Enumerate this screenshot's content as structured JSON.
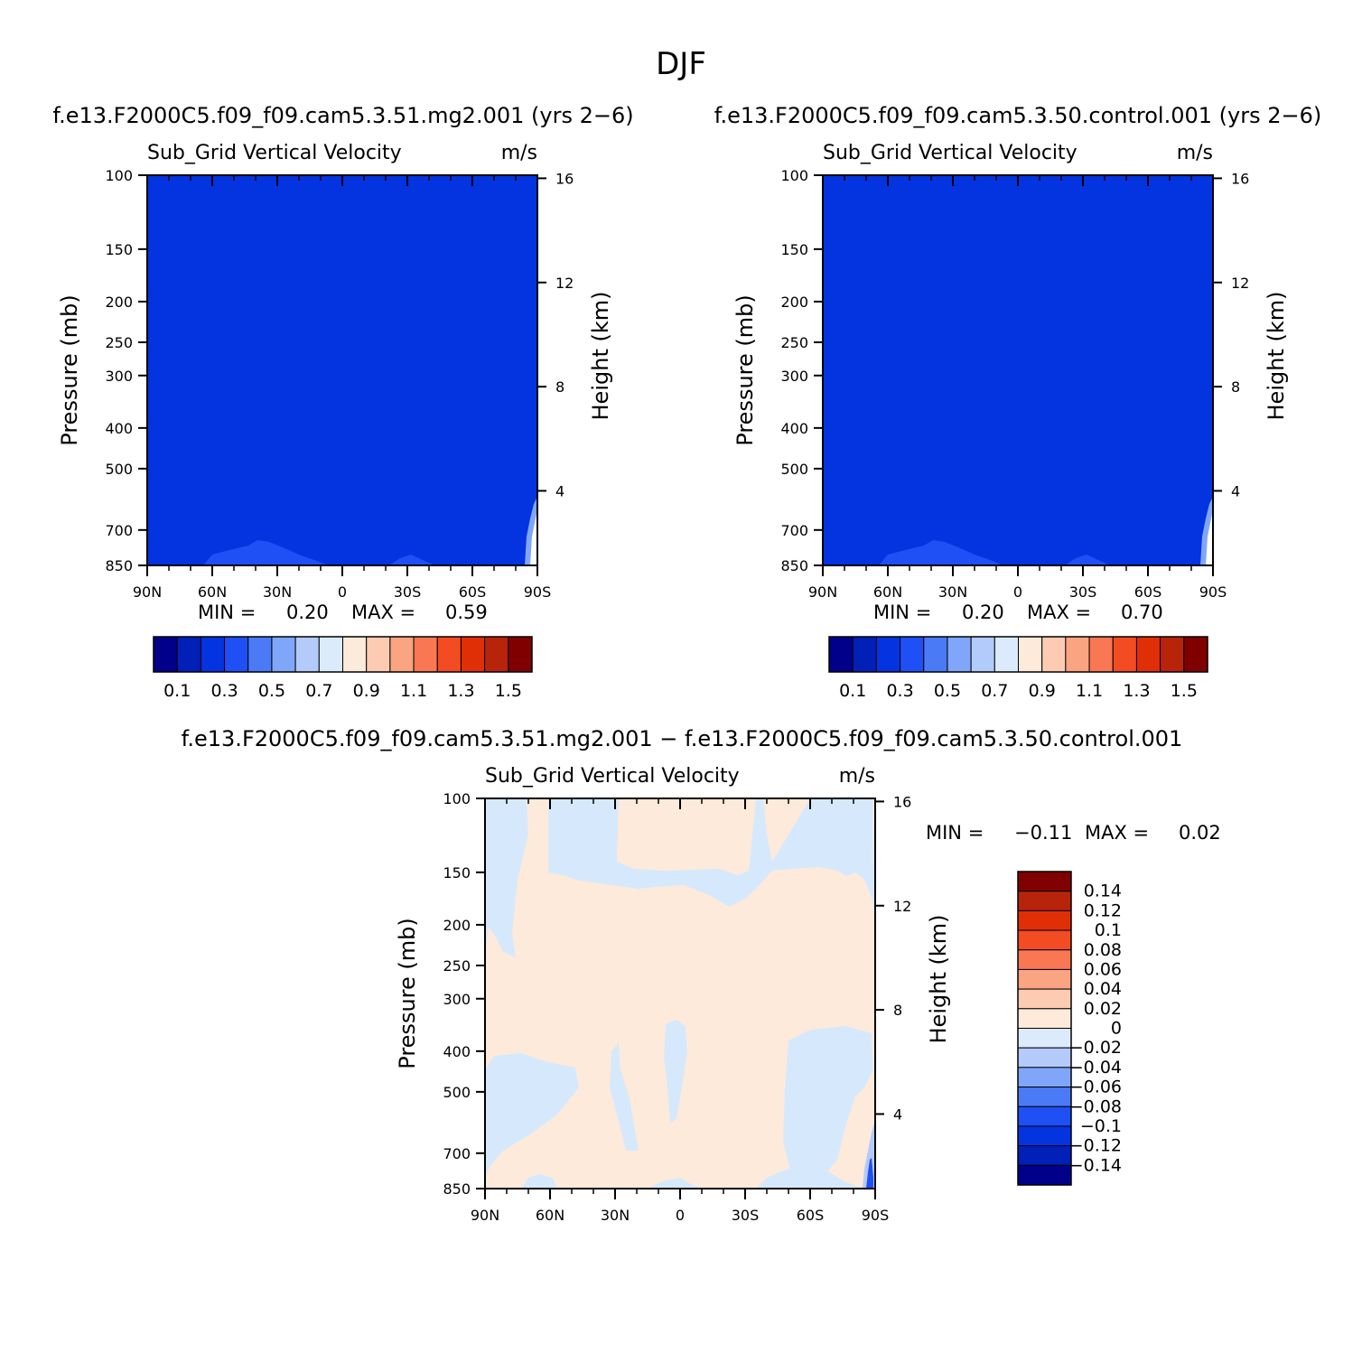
{
  "figure": {
    "title": "DJF"
  },
  "units": "m/s",
  "field_name": "Sub_Grid Vertical Velocity",
  "axes": {
    "pressure_label": "Pressure (mb)",
    "height_label": "Height (km)",
    "pressure_ticks": [
      100,
      150,
      200,
      250,
      300,
      400,
      500,
      700,
      850
    ],
    "height_ticks": [
      16,
      12,
      8,
      4
    ],
    "lat_ticks": [
      "90N",
      "60N",
      "30N",
      "0",
      "30S",
      "60S",
      "90S"
    ]
  },
  "colors": {
    "base_fill": "#0433E0",
    "diff_warm": "#FEEADA",
    "diff_cool": "#D6E9FC",
    "seq_colorbar": [
      "#00008A",
      "#0020B8",
      "#0433E0",
      "#1E50F5",
      "#4A7AF6",
      "#7FA6F8",
      "#B3CBFA",
      "#DCEBFB",
      "#FEEADA",
      "#FDCBB1",
      "#FBA482",
      "#F97752",
      "#F34B22",
      "#E02F06",
      "#B8240A",
      "#800000"
    ],
    "diff_colorbar": [
      "#00008A",
      "#0020B8",
      "#0433E0",
      "#1E50F5",
      "#4A7AF6",
      "#7FA6F8",
      "#B3CBFA",
      "#DCEBFB",
      "#FEEADA",
      "#FDCBB1",
      "#FBA482",
      "#F97752",
      "#F34B22",
      "#E02F06",
      "#B8240A",
      "#800000"
    ]
  },
  "panels": [
    {
      "case": "f.e13.F2000C5.f09_f09.cam5.3.51.mg2.001 (yrs 2-6)",
      "min_label": "MIN =",
      "min": "0.20",
      "max_label": "MAX =",
      "max": "0.59"
    },
    {
      "case": "f.e13.F2000C5.f09_f09.cam5.3.50.control.001 (yrs 2-6)",
      "min_label": "MIN =",
      "min": "0.20",
      "max_label": "MAX =",
      "max": "0.70"
    },
    {
      "case": "f.e13.F2000C5.f09_f09.cam5.3.51.mg2.001 - f.e13.F2000C5.f09_f09.cam5.3.50.control.001",
      "min_label": "MIN =",
      "min": "-0.11",
      "max_label": "MAX =",
      "max": "0.02"
    }
  ],
  "chart_data": [
    {
      "type": "heatmap",
      "title": "f.e13.F2000C5.f09_f09.cam5.3.51.mg2.001 (yrs 2-6)",
      "subtitle": "Sub_Grid Vertical Velocity",
      "units": "m/s",
      "xlabel": "",
      "ylabel": "Pressure (mb)",
      "y2label": "Height (km)",
      "x_range": [
        90,
        -90
      ],
      "y_range": [
        850,
        100
      ],
      "y_scale": "log",
      "value_min": 0.2,
      "value_max": 0.59,
      "contour_levels": [
        0.1,
        0.2,
        0.3,
        0.4,
        0.5,
        0.6,
        0.7,
        0.8,
        0.9,
        1.0,
        1.1,
        1.2,
        1.3,
        1.4,
        1.5
      ],
      "colorbar_labels": [
        "0.1",
        "0.3",
        "0.5",
        "0.7",
        "0.9",
        "1.1",
        "1.3",
        "1.5"
      ]
    },
    {
      "type": "heatmap",
      "title": "f.e13.F2000C5.f09_f09.cam5.3.50.control.001 (yrs 2-6)",
      "subtitle": "Sub_Grid Vertical Velocity",
      "units": "m/s",
      "xlabel": "",
      "ylabel": "Pressure (mb)",
      "y2label": "Height (km)",
      "x_range": [
        90,
        -90
      ],
      "y_range": [
        850,
        100
      ],
      "y_scale": "log",
      "value_min": 0.2,
      "value_max": 0.7,
      "contour_levels": [
        0.1,
        0.2,
        0.3,
        0.4,
        0.5,
        0.6,
        0.7,
        0.8,
        0.9,
        1.0,
        1.1,
        1.2,
        1.3,
        1.4,
        1.5
      ],
      "colorbar_labels": [
        "0.1",
        "0.3",
        "0.5",
        "0.7",
        "0.9",
        "1.1",
        "1.3",
        "1.5"
      ]
    },
    {
      "type": "heatmap",
      "title": "f.e13.F2000C5.f09_f09.cam5.3.51.mg2.001 - f.e13.F2000C5.f09_f09.cam5.3.50.control.001",
      "subtitle": "Sub_Grid Vertical Velocity",
      "units": "m/s",
      "xlabel": "",
      "ylabel": "Pressure (mb)",
      "y2label": "Height (km)",
      "x_range": [
        90,
        -90
      ],
      "y_range": [
        850,
        100
      ],
      "y_scale": "log",
      "value_min": -0.11,
      "value_max": 0.02,
      "contour_levels": [
        -0.14,
        -0.12,
        -0.1,
        -0.08,
        -0.06,
        -0.04,
        -0.02,
        0,
        0.02,
        0.04,
        0.06,
        0.08,
        0.1,
        0.12,
        0.14
      ],
      "colorbar_labels": [
        "0.14",
        "0.12",
        "0.1",
        "0.08",
        "0.06",
        "0.04",
        "0.02",
        "0",
        "-0.02",
        "-0.04",
        "-0.06",
        "-0.08",
        "-0.1",
        "-0.12",
        "-0.14"
      ]
    }
  ]
}
